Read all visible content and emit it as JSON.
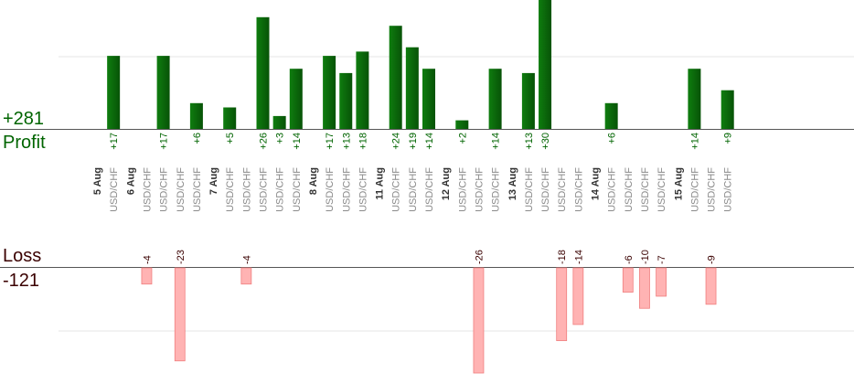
{
  "summary": {
    "profit_total": "+281",
    "profit_label": "Profit",
    "loss_label": "Loss",
    "loss_total": "-121"
  },
  "colors": {
    "profit_bar": "#0b6b0b",
    "profit_text": "#006400",
    "loss_bar": "#ffb3b3",
    "loss_stroke": "#f07f7f",
    "loss_text": "#3a0000",
    "axis": "#555555",
    "grid": "#e6e6e6",
    "symbol_text": "#8a8a8a",
    "date_text": "#333333"
  },
  "chart_data": {
    "type": "bar",
    "profit_scale_max": 30,
    "loss_scale_max": 26,
    "grid": true,
    "columns": [
      {
        "label": "5 Aug",
        "kind": "date"
      },
      {
        "label": "USD/CHF",
        "kind": "trade",
        "profit": 17
      },
      {
        "label": "6 Aug",
        "kind": "date"
      },
      {
        "label": "USD/CHF",
        "kind": "trade",
        "loss": -4
      },
      {
        "label": "USD/CHF",
        "kind": "trade",
        "profit": 17
      },
      {
        "label": "USD/CHF",
        "kind": "trade",
        "loss": -23
      },
      {
        "label": "USD/CHF",
        "kind": "trade",
        "profit": 6
      },
      {
        "label": "7 Aug",
        "kind": "date"
      },
      {
        "label": "USD/CHF",
        "kind": "trade",
        "profit": 5
      },
      {
        "label": "USD/CHF",
        "kind": "trade",
        "loss": -4
      },
      {
        "label": "USD/CHF",
        "kind": "trade",
        "profit": 26
      },
      {
        "label": "USD/CHF",
        "kind": "trade",
        "profit": 3
      },
      {
        "label": "USD/CHF",
        "kind": "trade",
        "profit": 14
      },
      {
        "label": "8 Aug",
        "kind": "date"
      },
      {
        "label": "USD/CHF",
        "kind": "trade",
        "profit": 17
      },
      {
        "label": "USD/CHF",
        "kind": "trade",
        "profit": 13
      },
      {
        "label": "USD/CHF",
        "kind": "trade",
        "profit": 18
      },
      {
        "label": "11 Aug",
        "kind": "date"
      },
      {
        "label": "USD/CHF",
        "kind": "trade",
        "profit": 24
      },
      {
        "label": "USD/CHF",
        "kind": "trade",
        "profit": 19
      },
      {
        "label": "USD/CHF",
        "kind": "trade",
        "profit": 14
      },
      {
        "label": "12 Aug",
        "kind": "date"
      },
      {
        "label": "USD/CHF",
        "kind": "trade",
        "profit": 2
      },
      {
        "label": "USD/CHF",
        "kind": "trade",
        "loss": -26
      },
      {
        "label": "USD/CHF",
        "kind": "trade",
        "profit": 14
      },
      {
        "label": "13 Aug",
        "kind": "date"
      },
      {
        "label": "USD/CHF",
        "kind": "trade",
        "profit": 13
      },
      {
        "label": "USD/CHF",
        "kind": "trade",
        "profit": 30
      },
      {
        "label": "USD/CHF",
        "kind": "trade",
        "loss": -18
      },
      {
        "label": "USD/CHF",
        "kind": "trade",
        "loss": -14
      },
      {
        "label": "14 Aug",
        "kind": "date"
      },
      {
        "label": "USD/CHF",
        "kind": "trade",
        "profit": 6
      },
      {
        "label": "USD/CHF",
        "kind": "trade",
        "loss": -6
      },
      {
        "label": "USD/CHF",
        "kind": "trade",
        "loss": -10
      },
      {
        "label": "USD/CHF",
        "kind": "trade",
        "loss": -7
      },
      {
        "label": "15 Aug",
        "kind": "date"
      },
      {
        "label": "USD/CHF",
        "kind": "trade",
        "profit": 14
      },
      {
        "label": "USD/CHF",
        "kind": "trade",
        "loss": -9
      },
      {
        "label": "USD/CHF",
        "kind": "trade",
        "profit": 9
      }
    ]
  }
}
